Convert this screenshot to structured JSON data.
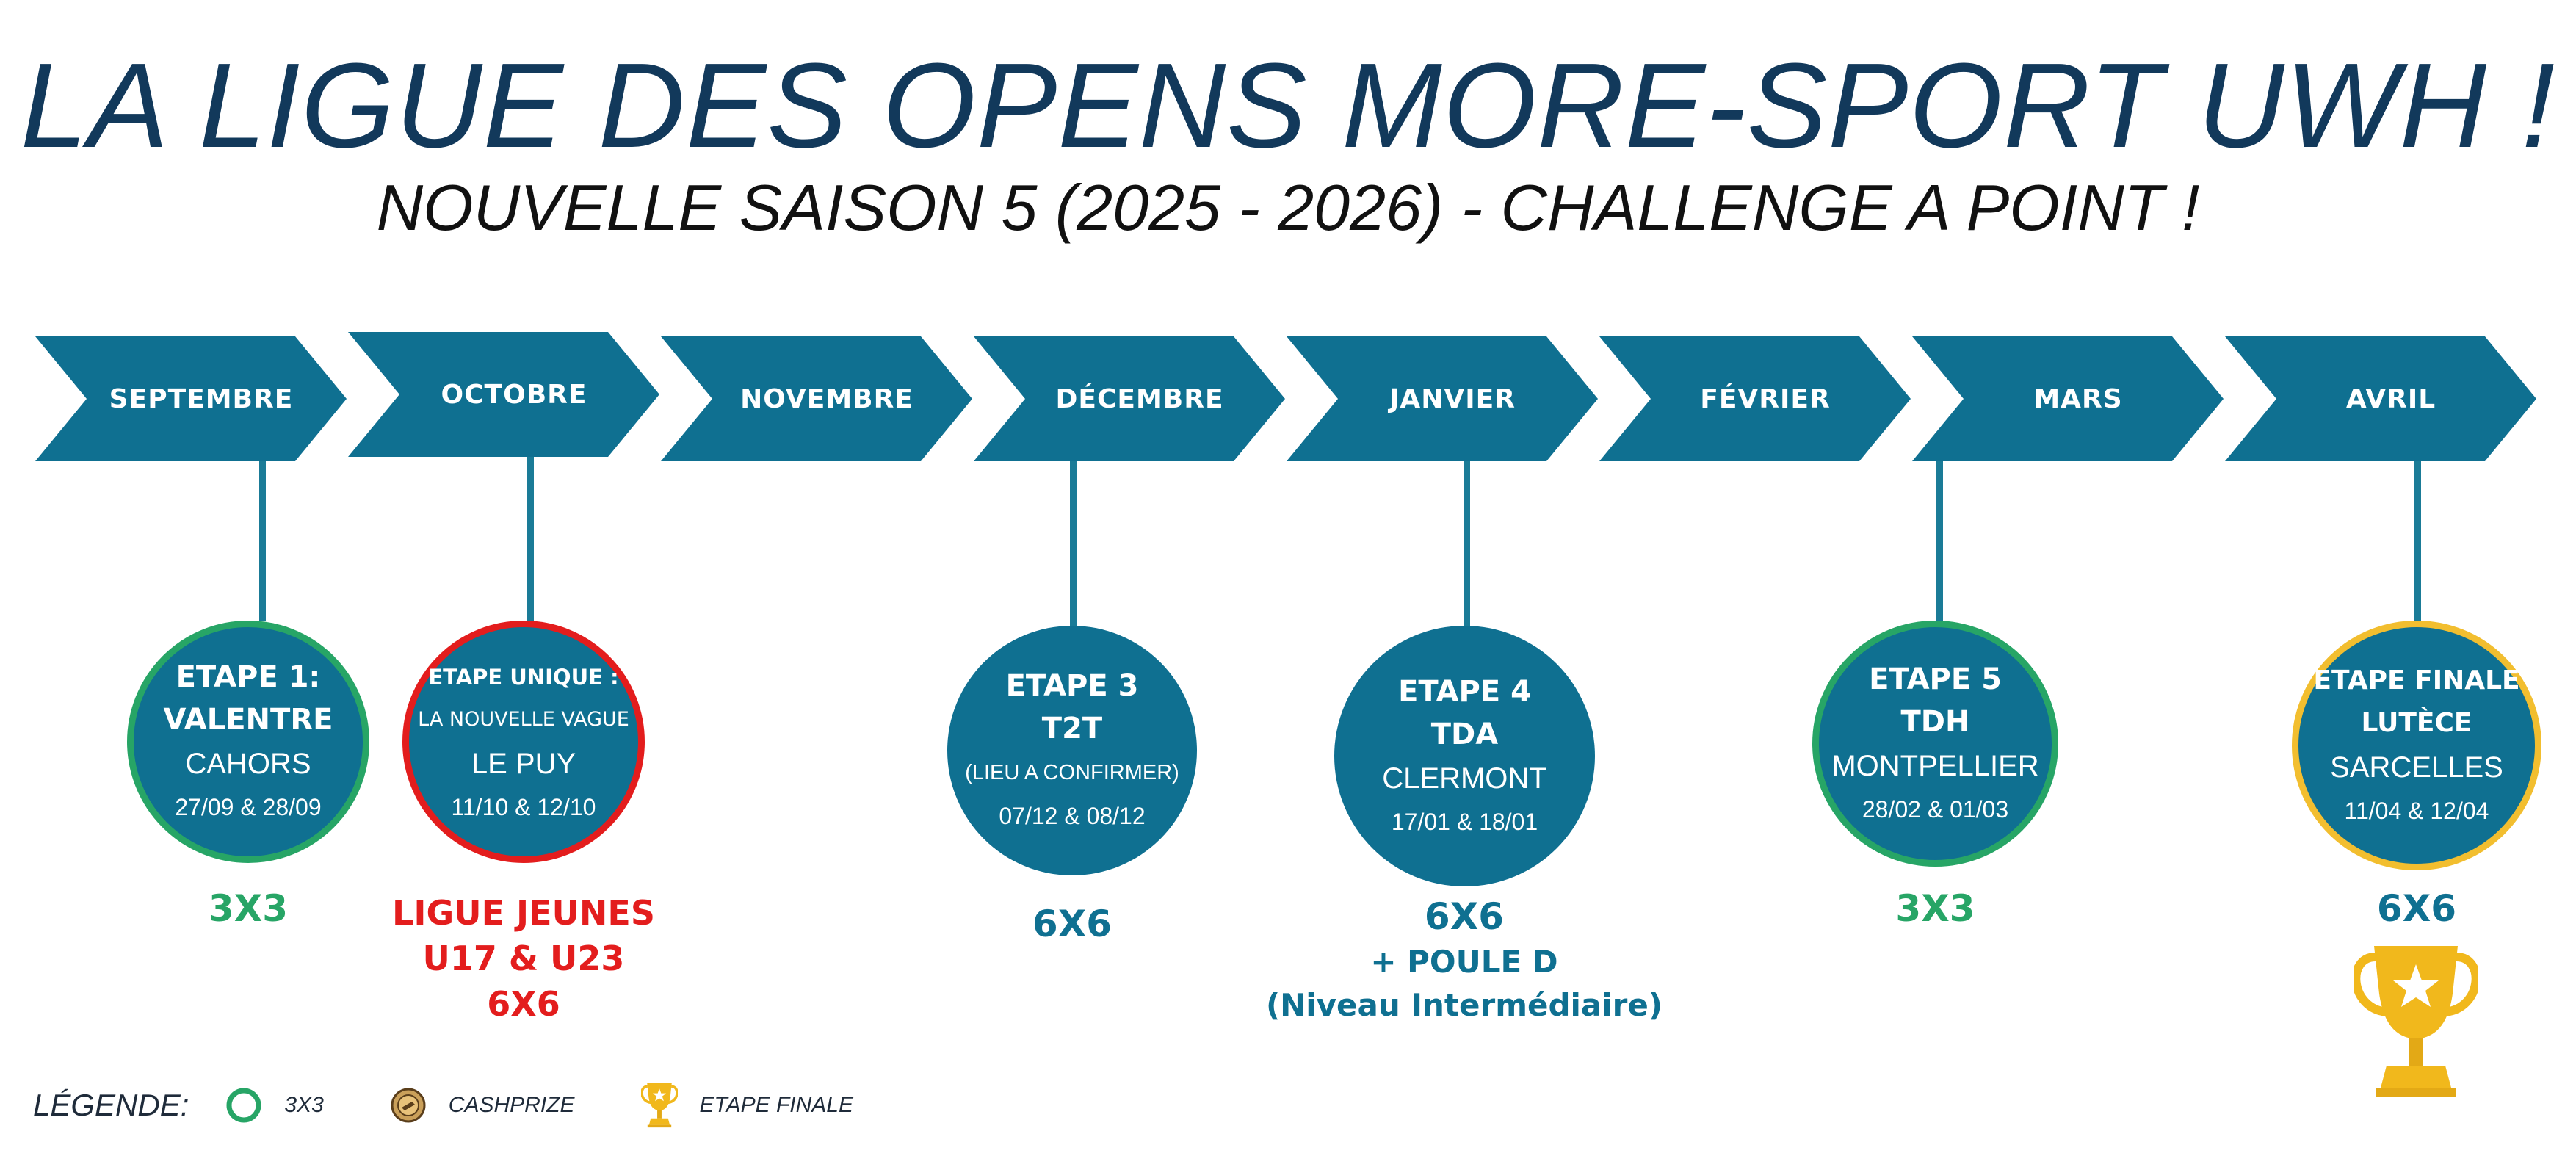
{
  "header": {
    "title": "LA LIGUE DES OPENS MORE-SPORT UWH !",
    "subtitle": "NOUVELLE SAISON 5 (2025 - 2026) - CHALLENGE A POINT !"
  },
  "months": [
    "SEPTEMBRE",
    "OCTOBRE",
    "NOVEMBRE",
    "DÉCEMBRE",
    "JANVIER",
    "FÉVRIER",
    "MARS",
    "AVRIL"
  ],
  "colors": {
    "chevron": "#0f7091",
    "ring_3x3": "#27a566",
    "ring_jeunes": "#e31d1d",
    "ring_finale": "#f2be2f",
    "format_blue": "#0f7091",
    "format_green": "#27a566",
    "format_red": "#e31d1d",
    "trophy": "#f1b81c"
  },
  "etapes": [
    {
      "line1": "ETAPE 1:",
      "line2": "VALENTRE",
      "city": "CAHORS",
      "dates": "27/09 & 28/09",
      "format_lines": [
        "3X3"
      ],
      "ring": "3x3"
    },
    {
      "line1": "ETAPE UNIQUE :",
      "line2": "LA NOUVELLE VAGUE",
      "city": "LE PUY",
      "dates": "11/10 & 12/10",
      "format_lines": [
        "LIGUE JEUNES",
        "U17 & U23",
        "6X6"
      ],
      "ring": "jeunes"
    },
    {
      "line1": "ETAPE 3",
      "line2": "T2T",
      "city": "(LIEU A CONFIRMER)",
      "dates": "07/12 & 08/12",
      "format_lines": [
        "6X6"
      ],
      "ring": "none"
    },
    {
      "line1": "ETAPE 4",
      "line2": "TDA",
      "city": "CLERMONT",
      "dates": "17/01 & 18/01",
      "format_lines": [
        "6X6",
        "+ POULE D",
        "(Niveau Intermédiaire)"
      ],
      "ring": "none"
    },
    {
      "line1": "ETAPE 5",
      "line2": "TDH",
      "city": "MONTPELLIER",
      "dates": "28/02 & 01/03",
      "format_lines": [
        "3X3"
      ],
      "ring": "3x3"
    },
    {
      "line1": "ETAPE FINALE",
      "line2": "LUTÈCE",
      "city": "SARCELLES",
      "dates": "11/04 & 12/04",
      "format_lines": [
        "6X6"
      ],
      "ring": "finale"
    }
  ],
  "legend": {
    "title": "LÉGENDE:",
    "items": [
      {
        "label": "3X3",
        "icon": "green-ring-icon"
      },
      {
        "label": "CASHPRIZE",
        "icon": "coin-icon"
      },
      {
        "label": "ETAPE FINALE",
        "icon": "trophy-icon"
      }
    ]
  }
}
